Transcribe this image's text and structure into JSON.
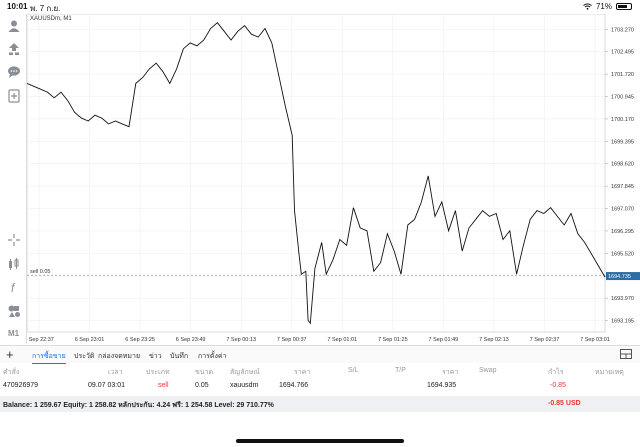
{
  "status_bar": {
    "time": "10:01",
    "date": "พ. 7 ก.ย.",
    "battery": "71%",
    "battery_level": 0.71
  },
  "toolbar": {
    "icons": [
      "account-icon",
      "trade-icon",
      "chat-icon",
      "new-order-icon",
      "crosshair-icon",
      "indicators-icon",
      "function-icon",
      "objects-icon",
      "timeframe-label"
    ],
    "timeframe": "M1"
  },
  "chart": {
    "title": "XAUUSDm, M1",
    "sell_line_label": "sell 0.05",
    "current_price_label": "1694.735"
  },
  "chart_data": {
    "type": "line",
    "symbol": "XAUUSDm",
    "timeframe": "M1",
    "y_ticks": [
      "1703.270",
      "1702.495",
      "1701.720",
      "1700.945",
      "1700.170",
      "1699.395",
      "1698.620",
      "1697.845",
      "1697.070",
      "1696.295",
      "1695.520",
      "1694.735",
      "1693.970",
      "1693.195"
    ],
    "x_ticks": [
      "6 Sep 22:37",
      "6 Sep 23:01",
      "6 Sep 23:25",
      "6 Sep 23:49",
      "7 Sep 00:13",
      "7 Sep 00:37",
      "7 Sep 01:01",
      "7 Sep 01:25",
      "7 Sep 01:49",
      "7 Sep 02:13",
      "7 Sep 02:37",
      "7 Sep 03:01"
    ],
    "ylim": [
      1692.8,
      1703.8
    ],
    "sell_level": 1694.766,
    "current_price": 1694.735,
    "points": [
      [
        0,
        1701.4
      ],
      [
        3,
        1701.3
      ],
      [
        6,
        1701.2
      ],
      [
        9,
        1701.1
      ],
      [
        12,
        1700.9
      ],
      [
        15,
        1701.1
      ],
      [
        18,
        1700.8
      ],
      [
        21,
        1700.4
      ],
      [
        24,
        1700.2
      ],
      [
        27,
        1700.1
      ],
      [
        30,
        1700.3
      ],
      [
        33,
        1700.2
      ],
      [
        36,
        1700.0
      ],
      [
        39,
        1700.1
      ],
      [
        42,
        1700.0
      ],
      [
        45,
        1699.9
      ],
      [
        48,
        1701.4
      ],
      [
        51,
        1701.6
      ],
      [
        54,
        1701.9
      ],
      [
        57,
        1702.1
      ],
      [
        60,
        1701.8
      ],
      [
        63,
        1701.4
      ],
      [
        66,
        1701.9
      ],
      [
        69,
        1702.6
      ],
      [
        72,
        1702.8
      ],
      [
        75,
        1702.7
      ],
      [
        78,
        1702.9
      ],
      [
        81,
        1703.3
      ],
      [
        84,
        1703.5
      ],
      [
        87,
        1703.2
      ],
      [
        90,
        1702.9
      ],
      [
        93,
        1703.2
      ],
      [
        96,
        1703.4
      ],
      [
        99,
        1703.1
      ],
      [
        102,
        1703.0
      ],
      [
        105,
        1703.3
      ],
      [
        108,
        1702.8
      ],
      [
        111,
        1701.7
      ],
      [
        114,
        1700.6
      ],
      [
        117,
        1699.6
      ],
      [
        118,
        1697.0
      ],
      [
        120,
        1695.5
      ],
      [
        121,
        1694.8
      ],
      [
        123,
        1694.9
      ],
      [
        124,
        1693.2
      ],
      [
        125,
        1693.1
      ],
      [
        127,
        1695.0
      ],
      [
        130,
        1695.9
      ],
      [
        132,
        1694.8
      ],
      [
        135,
        1695.3
      ],
      [
        138,
        1696.0
      ],
      [
        141,
        1695.8
      ],
      [
        144,
        1697.1
      ],
      [
        147,
        1696.4
      ],
      [
        150,
        1696.3
      ],
      [
        153,
        1694.9
      ],
      [
        156,
        1695.2
      ],
      [
        159,
        1696.2
      ],
      [
        162,
        1695.6
      ],
      [
        165,
        1694.8
      ],
      [
        168,
        1696.5
      ],
      [
        171,
        1696.7
      ],
      [
        174,
        1697.3
      ],
      [
        177,
        1698.2
      ],
      [
        180,
        1696.8
      ],
      [
        183,
        1697.3
      ],
      [
        186,
        1696.3
      ],
      [
        189,
        1697.0
      ],
      [
        192,
        1695.6
      ],
      [
        195,
        1696.4
      ],
      [
        198,
        1696.7
      ],
      [
        201,
        1697.0
      ],
      [
        204,
        1696.8
      ],
      [
        207,
        1696.9
      ],
      [
        210,
        1696.0
      ],
      [
        213,
        1696.3
      ],
      [
        216,
        1694.8
      ],
      [
        219,
        1695.8
      ],
      [
        222,
        1696.7
      ],
      [
        225,
        1697.0
      ],
      [
        228,
        1696.9
      ],
      [
        231,
        1697.1
      ],
      [
        234,
        1696.8
      ],
      [
        237,
        1696.5
      ],
      [
        240,
        1696.9
      ],
      [
        243,
        1696.2
      ],
      [
        246,
        1695.9
      ],
      [
        249,
        1695.5
      ],
      [
        252,
        1695.1
      ],
      [
        255,
        1694.7
      ]
    ],
    "grid": true
  },
  "tabs": [
    {
      "label": "การซื้อขาย",
      "active": true
    },
    {
      "label": "ประวัติ",
      "active": false
    },
    {
      "label": "กล่องจดหมาย",
      "active": false
    },
    {
      "label": "ข่าว",
      "active": false
    },
    {
      "label": "บันทึก",
      "active": false
    },
    {
      "label": "การตั้งค่า",
      "active": false
    }
  ],
  "table": {
    "headers": [
      "คำสั่ง",
      "เวลา",
      "ประเภท",
      "ขนาด",
      "สัญลักษณ์",
      "ราคา",
      "S/L",
      "T/P",
      "ราคา",
      "Swap",
      "กำไร",
      "หมายเหตุ"
    ],
    "rows": [
      {
        "order": "470926979",
        "time": "09.07 03:01",
        "type": "sell",
        "size": "0.05",
        "symbol": "xauusdm",
        "price": "1694.766",
        "sl": "",
        "tp": "",
        "current": "1694.935",
        "swap": "",
        "profit": "-0.85",
        "note": ""
      }
    ]
  },
  "balance": {
    "text": "Balance: 1 259.67 Equity: 1 258.82 หลักประกัน: 4.24 ฟรี: 1 254.58 Level: 29 710.77%",
    "profit": "-0.85  USD"
  },
  "colors": {
    "accent": "#1a73e8",
    "loss": "#e53935",
    "price_tag": "#2e6da4",
    "line": "#111111"
  }
}
